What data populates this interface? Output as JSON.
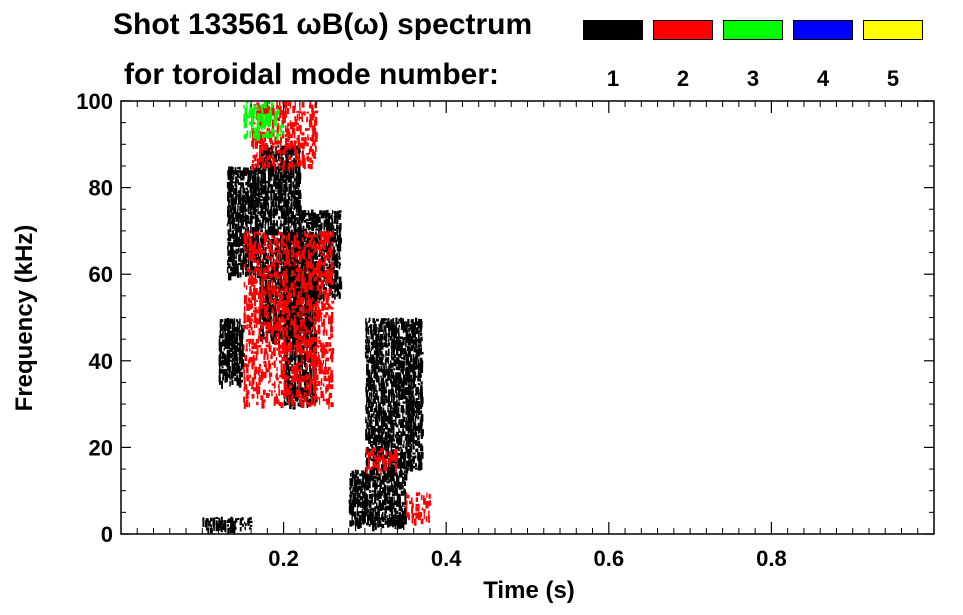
{
  "title_line1": "Shot 133561 ωB(ω) spectrum",
  "title_line2": "for toroidal mode number:",
  "legend": [
    {
      "mode": "1",
      "color": "#000000"
    },
    {
      "mode": "2",
      "color": "#ff0000"
    },
    {
      "mode": "3",
      "color": "#00ff00"
    },
    {
      "mode": "4",
      "color": "#0000ff"
    },
    {
      "mode": "5",
      "color": "#ffff00"
    }
  ],
  "chart_data": {
    "type": "heatmap",
    "title": "Shot 133561 ωB(ω) spectrum for toroidal mode number:",
    "xlabel": "Time (s)",
    "ylabel": "Frequency (kHz)",
    "xlim": [
      0.0,
      1.0
    ],
    "ylim": [
      0,
      100
    ],
    "x_ticks": [
      0.2,
      0.4,
      0.6,
      0.8
    ],
    "x_tick_labels": [
      "0.2",
      "0.4",
      "0.6",
      "0.8"
    ],
    "y_ticks": [
      0,
      20,
      40,
      60,
      80,
      100
    ],
    "y_tick_labels": [
      "0",
      "20",
      "40",
      "60",
      "80",
      "100"
    ],
    "series": [
      {
        "name": "1",
        "color": "#000000",
        "regions": [
          {
            "t": [
              0.13,
              0.17
            ],
            "f": [
              60,
              85
            ]
          },
          {
            "t": [
              0.12,
              0.15
            ],
            "f": [
              35,
              50
            ]
          },
          {
            "t": [
              0.17,
              0.22
            ],
            "f": [
              45,
              90
            ]
          },
          {
            "t": [
              0.2,
              0.24
            ],
            "f": [
              30,
              70
            ]
          },
          {
            "t": [
              0.22,
              0.27
            ],
            "f": [
              55,
              75
            ]
          },
          {
            "t": [
              0.28,
              0.35
            ],
            "f": [
              2,
              15
            ]
          },
          {
            "t": [
              0.3,
              0.37
            ],
            "f": [
              15,
              50
            ]
          },
          {
            "t": [
              0.1,
              0.16
            ],
            "f": [
              1,
              4
            ]
          }
        ]
      },
      {
        "name": "2",
        "color": "#ff0000",
        "regions": [
          {
            "t": [
              0.16,
              0.24
            ],
            "f": [
              85,
              100
            ]
          },
          {
            "t": [
              0.15,
              0.26
            ],
            "f": [
              30,
              70
            ]
          },
          {
            "t": [
              0.3,
              0.34
            ],
            "f": [
              15,
              20
            ]
          },
          {
            "t": [
              0.35,
              0.38
            ],
            "f": [
              3,
              10
            ]
          }
        ]
      },
      {
        "name": "3",
        "color": "#00ff00",
        "regions": [
          {
            "t": [
              0.15,
              0.2
            ],
            "f": [
              92,
              100
            ]
          }
        ]
      },
      {
        "name": "4",
        "color": "#0000ff",
        "regions": []
      },
      {
        "name": "5",
        "color": "#ffff00",
        "regions": []
      }
    ]
  }
}
